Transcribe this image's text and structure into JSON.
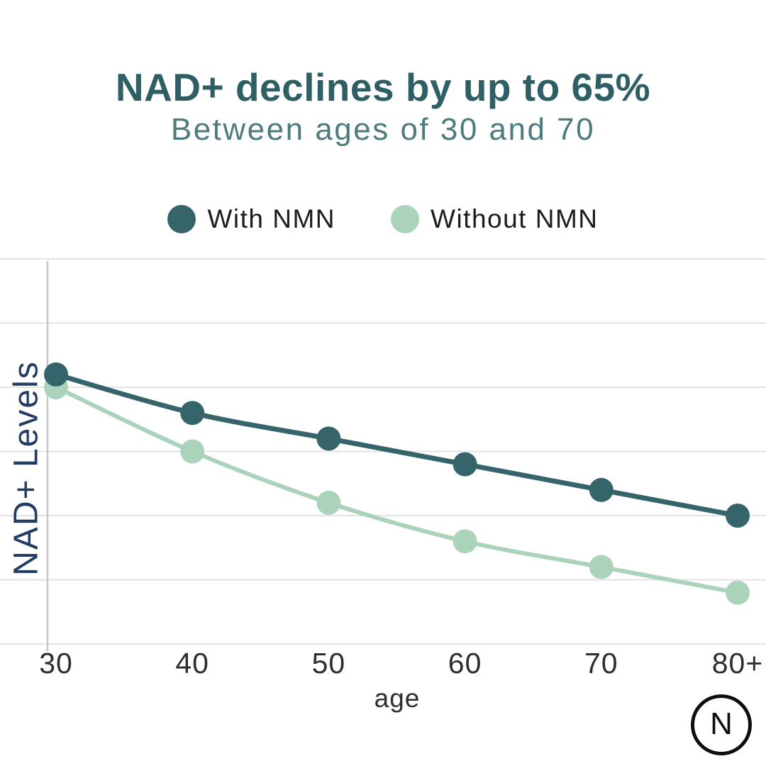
{
  "page": {
    "background": "#ffffff"
  },
  "header": {
    "title": "NAD+ declines by up to 65%",
    "subtitle": "Between ages of 30 and 70",
    "title_color": "#2e5f64",
    "subtitle_color": "#4e7b7e"
  },
  "legend": {
    "items": [
      {
        "label": "With NMN",
        "color": "#35646b"
      },
      {
        "label": "Without NMN",
        "color": "#abd2ba"
      }
    ]
  },
  "chart_data": {
    "type": "line",
    "x": [
      30,
      40,
      50,
      60,
      70,
      80
    ],
    "x_tick_labels": [
      "30",
      "40",
      "50",
      "60",
      "70",
      "80+"
    ],
    "series": [
      {
        "name": "With NMN",
        "color": "#35646b",
        "values": [
          92,
          86,
          82,
          78,
          74,
          70
        ]
      },
      {
        "name": "Without NMN",
        "color": "#abd2ba",
        "values": [
          90,
          80,
          72,
          66,
          62,
          58
        ]
      }
    ],
    "xlabel": "age",
    "ylabel": "NAD+ Levels",
    "ylim": [
      50,
      110
    ],
    "gridline_values": [
      110,
      100,
      90,
      80,
      70,
      60,
      50
    ],
    "grid": "horizontal-only",
    "legend_position": "top-center",
    "colors": {
      "gridline": "#e3e3e3",
      "axis_line": "#c6c6c6",
      "ylabel_color": "#223c64",
      "tick_label_color": "#2e2e2e"
    }
  },
  "logo": {
    "letter": "N"
  }
}
